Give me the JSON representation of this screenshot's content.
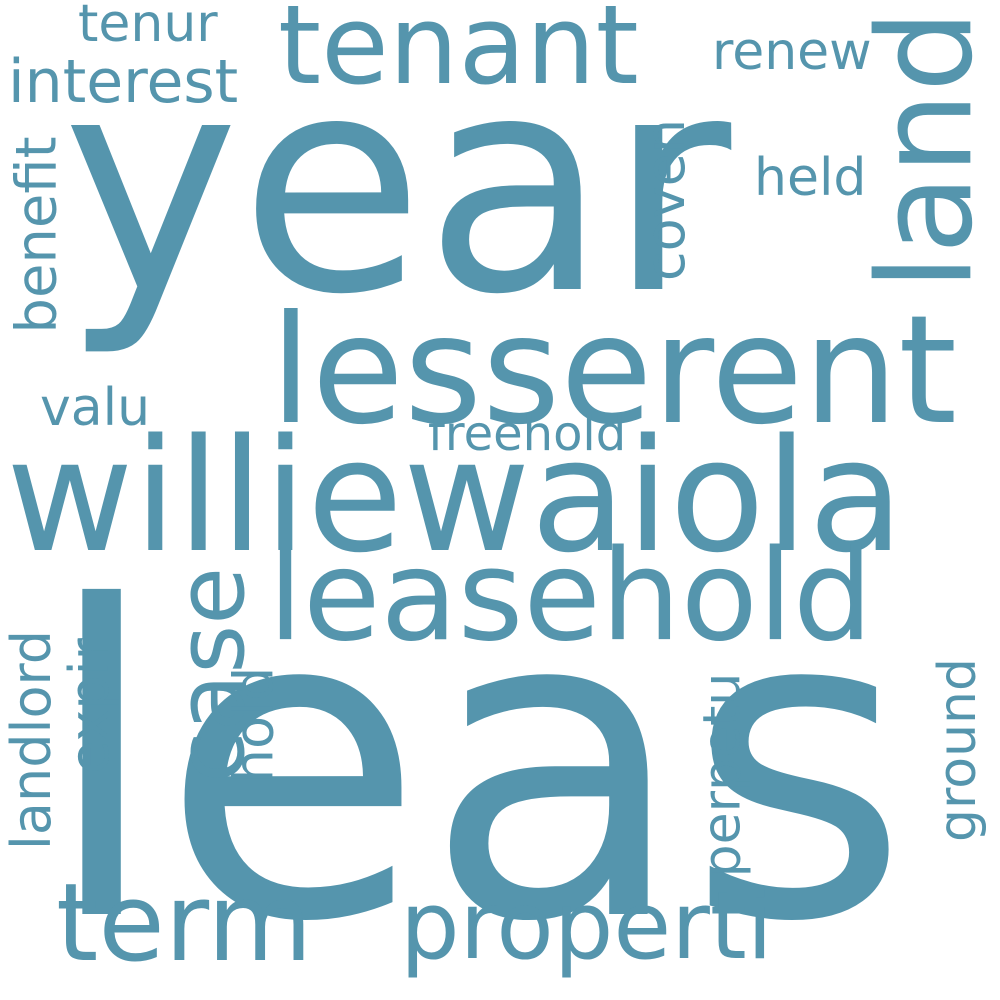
{
  "colors": {
    "word": "#5595ad",
    "background": "#ffffff"
  },
  "words": {
    "year": "year",
    "leas": "leas",
    "williewaiola": "williewaiola",
    "lesserent": "lesserent",
    "leasehold": "leasehold",
    "tenant": "tenant",
    "term": "term",
    "properti": "properti",
    "interest": "interest",
    "tenur": "tenur",
    "renew": "renew",
    "held": "held",
    "valu": "valu",
    "freehold": "freehold",
    "land": "land",
    "benefit": "benefit",
    "coven": "coven",
    "case": "case",
    "landlord": "landlord",
    "expir": "expir",
    "hold": "hold",
    "perpetu": "perpetu",
    "ground": "ground"
  }
}
